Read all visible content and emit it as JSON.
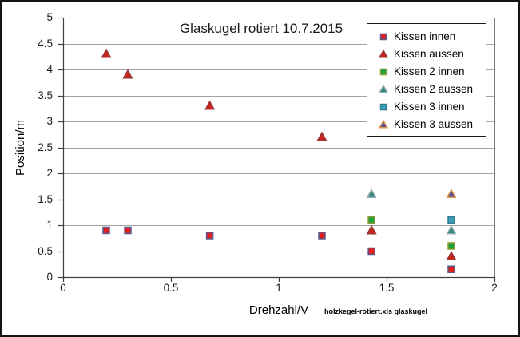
{
  "window": {
    "background": "#ffffff",
    "border_color": "#151515"
  },
  "chart_data": {
    "type": "scatter",
    "title": "Glaskugel rotiert 10.7.2015",
    "xlabel": "Drehzahl/V",
    "ylabel": "Position/m",
    "footnote": "holzkegel-rotiert.xls  glaskugel",
    "xlim": [
      0,
      2
    ],
    "ylim": [
      0,
      5
    ],
    "xticks": [
      "0",
      "0.5",
      "1",
      "1.5",
      "2"
    ],
    "yticks": [
      "0",
      "0.5",
      "1",
      "1.5",
      "2",
      "2.5",
      "3",
      "3.5",
      "4",
      "4.5",
      "5"
    ],
    "grid": "horizontal",
    "legend_position": "top-right-inside",
    "colors": {
      "gridline": "#a3a3a3",
      "axis": "#404040",
      "right_border": "#7a7a7a",
      "text": "#1a1a1a"
    },
    "series": [
      {
        "name": "Kissen innen",
        "marker": "square",
        "fill": "#e0201d",
        "stroke": "#575a90",
        "points": [
          [
            0.2,
            0.9
          ],
          [
            0.3,
            0.9
          ],
          [
            0.68,
            0.8
          ],
          [
            1.2,
            0.8
          ],
          [
            1.43,
            0.5
          ],
          [
            1.8,
            0.15
          ]
        ]
      },
      {
        "name": "Kissen aussen",
        "marker": "triangle",
        "fill": "#cc231c",
        "stroke": "#953735",
        "points": [
          [
            0.2,
            4.3
          ],
          [
            0.3,
            3.9
          ],
          [
            0.68,
            3.3
          ],
          [
            1.2,
            2.7
          ],
          [
            1.43,
            0.9
          ],
          [
            1.8,
            0.4
          ]
        ]
      },
      {
        "name": "Kissen 2 innen",
        "marker": "square",
        "fill": "#1ca23b",
        "stroke": "#8d9c2f",
        "points": [
          [
            1.43,
            1.1
          ],
          [
            1.8,
            0.6
          ]
        ]
      },
      {
        "name": "Kissen 2 aussen",
        "marker": "triangle",
        "fill": "#2f8a6e",
        "stroke": "#93a9bd",
        "points": [
          [
            1.43,
            1.6
          ],
          [
            1.8,
            0.9
          ]
        ]
      },
      {
        "name": "Kissen 3 innen",
        "marker": "square",
        "fill": "#3e9eb7",
        "stroke": "#2e7e94",
        "points": [
          [
            1.8,
            1.1
          ]
        ]
      },
      {
        "name": "Kissen 3 aussen",
        "marker": "triangle",
        "fill": "#50549a",
        "stroke": "#e2954f",
        "points": [
          [
            1.8,
            1.6
          ]
        ]
      }
    ]
  }
}
